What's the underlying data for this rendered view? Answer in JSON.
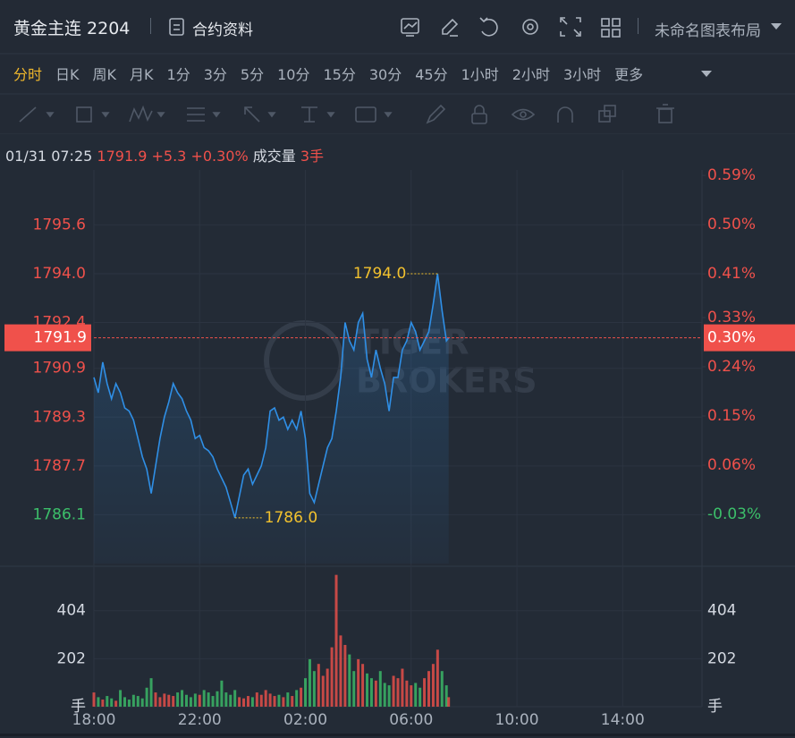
{
  "header": {
    "title": "黄金主连 2204",
    "contract_info": "合约资料",
    "layout_name": "未命名图表布局"
  },
  "tabs": {
    "items": [
      "分时",
      "日K",
      "周K",
      "月K",
      "1分",
      "3分",
      "5分",
      "10分",
      "15分",
      "30分",
      "45分",
      "1小时",
      "2小时",
      "3小时",
      "更多"
    ],
    "active": 0
  },
  "info": {
    "time": "01/31 07:25",
    "price": 1791.9,
    "change": {
      "value": 5.3,
      "label": "+5.3"
    },
    "change_pct": {
      "value": 0.3,
      "label": "+0.30%"
    },
    "volume_label": "成交量",
    "volume": {
      "value": 3,
      "label": "3手"
    }
  },
  "watermark": {
    "line1": "TIGER",
    "line2": "BROKERS"
  },
  "chart_data": [
    {
      "type": "line",
      "color": "#2f8fe6",
      "up_color": "#f0514b",
      "down_color": "#3cbf6a",
      "x": [
        "18:00",
        "18:10",
        "18:20",
        "18:30",
        "18:40",
        "18:50",
        "19:00",
        "19:10",
        "19:20",
        "19:30",
        "19:40",
        "19:50",
        "20:00",
        "20:10",
        "20:20",
        "20:30",
        "20:40",
        "20:50",
        "21:00",
        "21:10",
        "21:20",
        "21:30",
        "21:40",
        "21:50",
        "22:00",
        "22:10",
        "22:20",
        "22:30",
        "22:40",
        "22:50",
        "23:00",
        "23:10",
        "23:20",
        "23:30",
        "23:40",
        "23:50",
        "00:00",
        "00:10",
        "00:20",
        "00:30",
        "00:40",
        "00:50",
        "01:00",
        "01:10",
        "01:20",
        "01:30",
        "01:40",
        "01:50",
        "02:00",
        "02:10",
        "02:20",
        "02:30",
        "02:40",
        "02:50",
        "03:00",
        "03:10",
        "03:20",
        "03:30",
        "03:40",
        "03:50",
        "04:00",
        "04:10",
        "04:20",
        "04:30",
        "04:40",
        "04:50",
        "05:00",
        "05:10",
        "05:20",
        "05:30",
        "05:40",
        "05:50",
        "06:00",
        "06:10",
        "06:20",
        "06:30",
        "06:40",
        "06:50",
        "07:00",
        "07:10",
        "07:20",
        "07:25"
      ],
      "values": [
        1790.6,
        1790.1,
        1791.1,
        1790.4,
        1789.9,
        1790.4,
        1790.1,
        1789.6,
        1789.5,
        1789.2,
        1788.6,
        1788.0,
        1787.6,
        1786.8,
        1787.7,
        1788.6,
        1789.3,
        1789.8,
        1790.4,
        1790.1,
        1789.9,
        1789.5,
        1789.2,
        1788.6,
        1788.7,
        1788.3,
        1788.2,
        1788.0,
        1787.6,
        1787.3,
        1787.0,
        1786.5,
        1786.0,
        1786.7,
        1787.4,
        1787.6,
        1787.1,
        1787.4,
        1787.7,
        1788.3,
        1789.5,
        1789.6,
        1789.2,
        1789.3,
        1788.9,
        1789.2,
        1788.9,
        1789.5,
        1788.6,
        1786.8,
        1786.5,
        1787.1,
        1787.7,
        1788.3,
        1788.6,
        1789.5,
        1790.6,
        1792.4,
        1791.8,
        1791.5,
        1792.4,
        1792.7,
        1791.2,
        1790.6,
        1791.5,
        1790.9,
        1790.4,
        1789.5,
        1790.6,
        1790.6,
        1791.5,
        1791.8,
        1792.4,
        1792.1,
        1791.5,
        1791.8,
        1792.1,
        1793.0,
        1794.0,
        1792.8,
        1791.8,
        1791.9
      ],
      "xlim": [
        "18:00",
        "17:00"
      ],
      "ylim": [
        1784.5,
        1797.4
      ],
      "yticks": [
        1795.6,
        {
          "value": 1794,
          "label": "1794.0"
        },
        1792.4,
        1790.9,
        1789.3,
        1787.7,
        1786.1
      ],
      "y2lim": [
        -0.12,
        0.6
      ],
      "y2ticks": [
        {
          "value": 0.59,
          "label": "0.59%"
        },
        {
          "value": 0.5,
          "label": "0.50%"
        },
        {
          "value": 0.41,
          "label": "0.41%"
        },
        {
          "value": 0.33,
          "label": "0.33%"
        },
        {
          "value": 0.24,
          "label": "0.24%"
        },
        {
          "value": 0.15,
          "label": "0.15%"
        },
        {
          "value": 0.06,
          "label": "0.06%"
        },
        {
          "value": -0.03,
          "label": "-0.03%"
        }
      ],
      "last": 1791.9,
      "last_pct": {
        "value": 0.3,
        "label": "0.30%"
      },
      "high": {
        "value": 1794,
        "label": "1794.0"
      },
      "low": {
        "value": 1786,
        "label": "1786.0"
      },
      "annotation_color": "#f2c12e",
      "grid": true
    },
    {
      "type": "bar",
      "x": [
        "18:00",
        "18:10",
        "18:20",
        "18:30",
        "18:40",
        "18:50",
        "19:00",
        "19:10",
        "19:20",
        "19:30",
        "19:40",
        "19:50",
        "20:00",
        "20:10",
        "20:20",
        "20:30",
        "20:40",
        "20:50",
        "21:00",
        "21:10",
        "21:20",
        "21:30",
        "21:40",
        "21:50",
        "22:00",
        "22:10",
        "22:20",
        "22:30",
        "22:40",
        "22:50",
        "23:00",
        "23:10",
        "23:20",
        "23:30",
        "23:40",
        "23:50",
        "00:00",
        "00:10",
        "00:20",
        "00:30",
        "00:40",
        "00:50",
        "01:00",
        "01:10",
        "01:20",
        "01:30",
        "01:40",
        "01:50",
        "02:00",
        "02:10",
        "02:20",
        "02:30",
        "02:40",
        "02:50",
        "03:00",
        "03:10",
        "03:20",
        "03:30",
        "03:40",
        "03:50",
        "04:00",
        "04:10",
        "04:20",
        "04:30",
        "04:40",
        "04:50",
        "05:00",
        "05:10",
        "05:20",
        "05:30",
        "05:40",
        "05:50",
        "06:00",
        "06:10",
        "06:20",
        "06:30",
        "06:40",
        "06:50",
        "07:00",
        "07:10",
        "07:20",
        "07:25"
      ],
      "values": [
        60,
        40,
        30,
        45,
        35,
        25,
        70,
        40,
        30,
        50,
        45,
        35,
        80,
        120,
        60,
        40,
        55,
        50,
        45,
        60,
        70,
        50,
        40,
        55,
        50,
        70,
        60,
        45,
        65,
        110,
        60,
        50,
        70,
        40,
        35,
        45,
        40,
        60,
        50,
        70,
        55,
        45,
        50,
        40,
        60,
        45,
        70,
        80,
        120,
        200,
        150,
        180,
        130,
        160,
        250,
        555,
        300,
        260,
        220,
        150,
        200,
        180,
        140,
        120,
        110,
        150,
        100,
        90,
        130,
        120,
        160,
        110,
        90,
        100,
        80,
        120,
        150,
        180,
        240,
        150,
        90,
        40
      ],
      "xlim": [
        "18:00",
        "17:00"
      ],
      "xticks": [
        "18:00",
        "22:00",
        "02:00",
        "06:00",
        "10:00",
        "14:00"
      ],
      "ylim": [
        0,
        565
      ],
      "yticks": [
        {
          "value": 0,
          "label": "手"
        },
        202,
        404
      ],
      "grid": true
    }
  ]
}
